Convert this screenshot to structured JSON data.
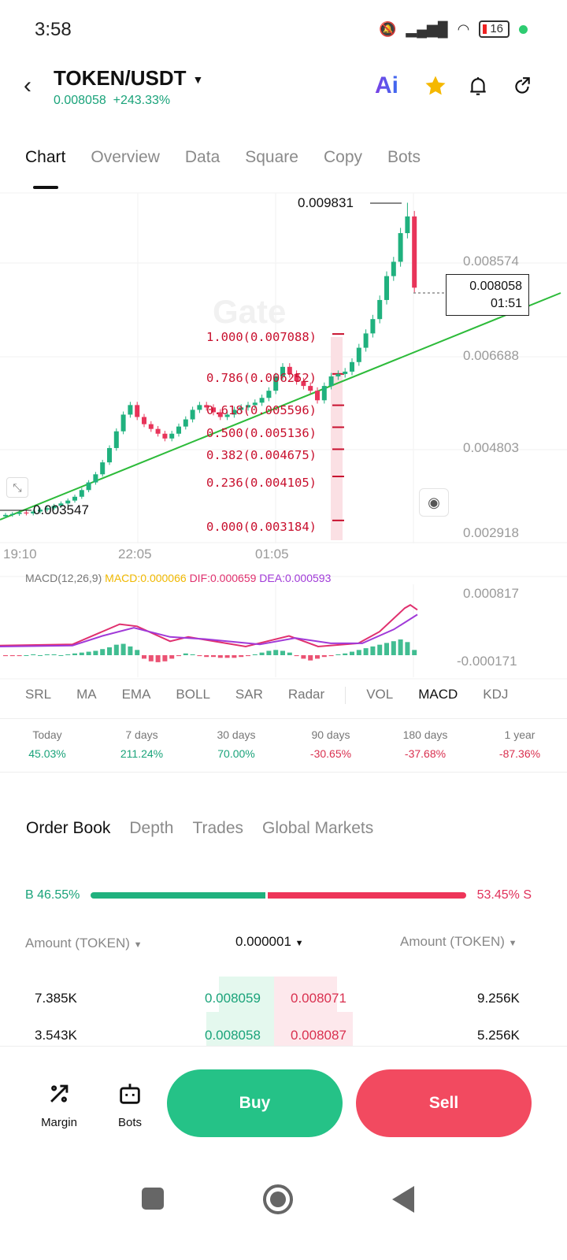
{
  "status": {
    "time": "3:58",
    "battery": "16"
  },
  "header": {
    "pair": "TOKEN/USDT",
    "price": "0.008058",
    "change": "+243.33%",
    "ai_label": "Ai"
  },
  "tabs": [
    "Chart",
    "Overview",
    "Data",
    "Square",
    "Copy",
    "Bots"
  ],
  "chart": {
    "watermark": "Gate",
    "price_axis": [
      "0.008574",
      "0.006688",
      "0.004803",
      "0.002918"
    ],
    "time_axis": [
      "19:10",
      "22:05",
      "01:05"
    ],
    "high_label": "0.009831",
    "low_label": "0.003547",
    "current_price": "0.008058",
    "countdown": "01:51",
    "fib_levels": [
      "1.000(0.007088)",
      "0.786(0.006252)",
      "0.618(0.005596)",
      "0.500(0.005136)",
      "0.382(0.004675)",
      "0.236(0.004105)",
      "0.000(0.003184)"
    ],
    "colors": {
      "up": "#20b17e",
      "down": "#e8345a",
      "trendline": "#2dbb3a",
      "fib": "#c8102e"
    }
  },
  "chart_data": {
    "type": "candlestick",
    "closes": [
      0.0033,
      0.00332,
      0.00335,
      0.00333,
      0.00337,
      0.00341,
      0.00344,
      0.00349,
      0.00354,
      0.0036,
      0.00368,
      0.00382,
      0.00398,
      0.00415,
      0.0044,
      0.0047,
      0.00505,
      0.0054,
      0.0056,
      0.00535,
      0.0052,
      0.0051,
      0.005,
      0.0049,
      0.005,
      0.00515,
      0.0053,
      0.0055,
      0.0056,
      0.00555,
      0.00545,
      0.00535,
      0.0054,
      0.0055,
      0.00555,
      0.0056,
      0.00565,
      0.00575,
      0.0059,
      0.0062,
      0.0064,
      0.00625,
      0.0061,
      0.006,
      0.0059,
      0.0057,
      0.006,
      0.0062,
      0.00625,
      0.0063,
      0.0065,
      0.0068,
      0.0071,
      0.0074,
      0.0078,
      0.0083,
      0.0086,
      0.0092,
      0.00955,
      0.008058
    ],
    "ylim": [
      0.002918,
      0.009831
    ],
    "macd": {
      "label": "MACD(12,26,9)",
      "macd": "MACD:0.000066",
      "dif": "DIF:0.000659",
      "dea": "DEA:0.000593",
      "axis": [
        "0.000817",
        "-0.000171"
      ],
      "dif_values": [
        0.000112,
        0.000131,
        0.000489,
        0.000451,
        0.000187,
        0.000263,
        9.3e-05,
        0.000281,
        9.3e-05,
        0.00015,
        0.000357,
        0.000772,
        0.000828,
        0.000742
      ],
      "dea_values": [
        9.3e-05,
        0.000112,
        0.000281,
        0.000425,
        0.000263,
        0.000225,
        0.000131,
        0.000244,
        0.00015,
        0.00015,
        0.000395,
        0.000659
      ],
      "hist": [
        -1e-05,
        -1e-05,
        -1e-05,
        0,
        1e-05,
        0,
        1e-05,
        1e-05,
        0,
        1e-05,
        2e-05,
        3e-05,
        4e-05,
        5e-05,
        7e-05,
        9e-05,
        0.00012,
        0.00013,
        0.0001,
        6e-05,
        -4e-05,
        -7e-05,
        -8e-05,
        -7e-05,
        -4e-05,
        -1e-05,
        2e-05,
        1e-05,
        -1e-05,
        -2e-05,
        -2e-05,
        -3e-05,
        -3e-05,
        -3e-05,
        -2e-05,
        -1e-05,
        1e-05,
        3e-05,
        5e-05,
        6e-05,
        5e-05,
        3e-05,
        -1e-05,
        -4e-05,
        -6e-05,
        -4e-05,
        -2e-05,
        -1e-05,
        1e-05,
        2e-05,
        4e-05,
        6e-05,
        8e-05,
        0.0001,
        0.00012,
        0.00014,
        0.00016,
        0.00018,
        0.00015,
        6e-05
      ]
    }
  },
  "indicators": [
    "SRL",
    "MA",
    "EMA",
    "BOLL",
    "SAR",
    "Radar",
    "VOL",
    "MACD",
    "KDJ"
  ],
  "periods": [
    {
      "label": "Today",
      "value": "45.03%",
      "up": true
    },
    {
      "label": "7 days",
      "value": "211.24%",
      "up": true
    },
    {
      "label": "30 days",
      "value": "70.00%",
      "up": true
    },
    {
      "label": "90 days",
      "value": "-30.65%",
      "up": false
    },
    {
      "label": "180 days",
      "value": "-37.68%",
      "up": false
    },
    {
      "label": "1 year",
      "value": "-87.36%",
      "up": false
    }
  ],
  "orderbook": {
    "tabs": [
      "Order Book",
      "Depth",
      "Trades",
      "Global Markets"
    ],
    "buy_label": "B 46.55%",
    "sell_label": "53.45% S",
    "buy_ratio": 46.55,
    "left_header": "Amount (TOKEN)",
    "precision": "0.000001",
    "right_header": "Amount (TOKEN)",
    "rows": [
      {
        "bid_amt": "7.385K",
        "bid": "0.008059",
        "ask": "0.008071",
        "ask_amt": "9.256K"
      },
      {
        "bid_amt": "3.543K",
        "bid": "0.008058",
        "ask": "0.008087",
        "ask_amt": "5.256K"
      }
    ]
  },
  "bottom": {
    "margin": "Margin",
    "bots": "Bots",
    "buy": "Buy",
    "sell": "Sell"
  }
}
